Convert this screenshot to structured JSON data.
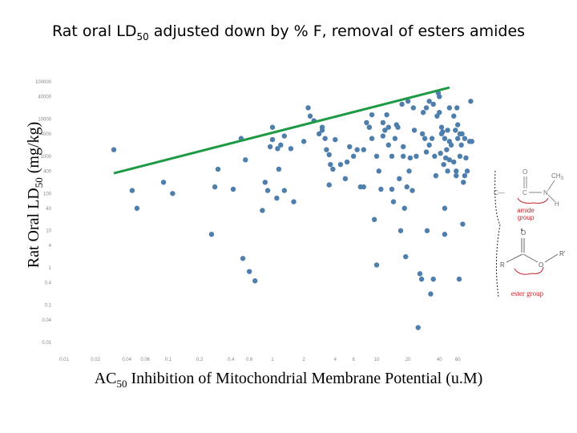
{
  "chart_data": {
    "type": "scatter",
    "title": "Rat oral LD",
    "title_sub": "50",
    "title_rest": " adjusted down by % F, removal of esters  amides",
    "ylabel": "Rat Oral LD",
    "ylabel_sub": "50",
    "ylabel_rest": " (mg/kg)",
    "xlabel": "AC",
    "xlabel_sub": "50",
    "xlabel_rest": " Inhibition of Mitochondrial Membrane Potential (u.M)",
    "x_scale": "log",
    "y_scale": "log",
    "xlim": [
      0.01,
      100
    ],
    "ylim": [
      0.01,
      100000
    ],
    "grid": false,
    "x_ticks": [
      "0.01",
      "0.02",
      "0.04",
      "0.06",
      "0.1",
      "0.2",
      "0.4",
      "0.6",
      "1",
      "2",
      "4",
      "6",
      "10",
      "20",
      "40",
      "60"
    ],
    "y_ticks": [
      "100000",
      "40000",
      "10000",
      "4000",
      "1000",
      "400",
      "100",
      "40",
      "10",
      "4",
      "1",
      "0.4",
      "0.1",
      "0.04",
      "0.01"
    ],
    "point_color": "#4e7eab",
    "line_color": "#1e9a45",
    "trend_line": {
      "x": [
        0.03,
        50
      ],
      "y": [
        350,
        70000
      ]
    },
    "points": [
      {
        "x": 0.03,
        "y": 1500
      },
      {
        "x": 0.045,
        "y": 120
      },
      {
        "x": 0.05,
        "y": 40
      },
      {
        "x": 0.09,
        "y": 200
      },
      {
        "x": 0.11,
        "y": 100
      },
      {
        "x": 0.26,
        "y": 8
      },
      {
        "x": 0.28,
        "y": 150
      },
      {
        "x": 0.3,
        "y": 450
      },
      {
        "x": 0.42,
        "y": 130
      },
      {
        "x": 0.5,
        "y": 3000
      },
      {
        "x": 0.52,
        "y": 1.8
      },
      {
        "x": 0.55,
        "y": 800
      },
      {
        "x": 0.6,
        "y": 0.8
      },
      {
        "x": 0.68,
        "y": 0.45
      },
      {
        "x": 0.8,
        "y": 35
      },
      {
        "x": 0.85,
        "y": 200
      },
      {
        "x": 0.9,
        "y": 120
      },
      {
        "x": 0.95,
        "y": 1800
      },
      {
        "x": 1,
        "y": 6000
      },
      {
        "x": 1,
        "y": 2800
      },
      {
        "x": 1.1,
        "y": 75
      },
      {
        "x": 1.12,
        "y": 1600
      },
      {
        "x": 1.15,
        "y": 450
      },
      {
        "x": 1.2,
        "y": 2000
      },
      {
        "x": 1.3,
        "y": 3500
      },
      {
        "x": 1.3,
        "y": 120
      },
      {
        "x": 1.5,
        "y": 1600
      },
      {
        "x": 1.6,
        "y": 60
      },
      {
        "x": 2,
        "y": 2500
      },
      {
        "x": 2.2,
        "y": 20000
      },
      {
        "x": 2.3,
        "y": 12000
      },
      {
        "x": 2.5,
        "y": 9000
      },
      {
        "x": 2.8,
        "y": 4000
      },
      {
        "x": 3,
        "y": 6000
      },
      {
        "x": 3,
        "y": 5000
      },
      {
        "x": 3.2,
        "y": 3000
      },
      {
        "x": 3.3,
        "y": 1500
      },
      {
        "x": 3.5,
        "y": 1100
      },
      {
        "x": 3.6,
        "y": 600
      },
      {
        "x": 3.8,
        "y": 450
      },
      {
        "x": 3.5,
        "y": 170
      },
      {
        "x": 4,
        "y": 2800
      },
      {
        "x": 4.5,
        "y": 600
      },
      {
        "x": 5,
        "y": 250
      },
      {
        "x": 5.2,
        "y": 700
      },
      {
        "x": 5.5,
        "y": 1800
      },
      {
        "x": 6,
        "y": 1000
      },
      {
        "x": 6.5,
        "y": 1500
      },
      {
        "x": 7,
        "y": 150
      },
      {
        "x": 7.5,
        "y": 150
      },
      {
        "x": 7.5,
        "y": 1500
      },
      {
        "x": 8,
        "y": 8000
      },
      {
        "x": 8.5,
        "y": 6000
      },
      {
        "x": 8.5,
        "y": 6000
      },
      {
        "x": 9,
        "y": 13000
      },
      {
        "x": 9,
        "y": 3000
      },
      {
        "x": 9.5,
        "y": 20
      },
      {
        "x": 10,
        "y": 1000
      },
      {
        "x": 10.5,
        "y": 400
      },
      {
        "x": 10,
        "y": 1.2
      },
      {
        "x": 11,
        "y": 130
      },
      {
        "x": 11.5,
        "y": 8000
      },
      {
        "x": 11.5,
        "y": 3500
      },
      {
        "x": 12,
        "y": 5000
      },
      {
        "x": 12.5,
        "y": 13000
      },
      {
        "x": 13,
        "y": 6000
      },
      {
        "x": 13,
        "y": 2000
      },
      {
        "x": 14,
        "y": 1000
      },
      {
        "x": 14,
        "y": 130
      },
      {
        "x": 14.5,
        "y": 60
      },
      {
        "x": 15,
        "y": 3000
      },
      {
        "x": 15.5,
        "y": 7000
      },
      {
        "x": 16,
        "y": 6000
      },
      {
        "x": 16.5,
        "y": 250
      },
      {
        "x": 17,
        "y": 10
      },
      {
        "x": 17.5,
        "y": 25000
      },
      {
        "x": 18,
        "y": 1800
      },
      {
        "x": 18,
        "y": 1000
      },
      {
        "x": 18.5,
        "y": 40
      },
      {
        "x": 19,
        "y": 2
      },
      {
        "x": 19.5,
        "y": 150
      },
      {
        "x": 20,
        "y": 30000
      },
      {
        "x": 20.5,
        "y": 400
      },
      {
        "x": 21,
        "y": 900
      },
      {
        "x": 22,
        "y": 120
      },
      {
        "x": 22.5,
        "y": 20000
      },
      {
        "x": 23,
        "y": 5000
      },
      {
        "x": 24,
        "y": 1000
      },
      {
        "x": 25,
        "y": 0.025
      },
      {
        "x": 26,
        "y": 0.7
      },
      {
        "x": 27,
        "y": 0.5
      },
      {
        "x": 27.5,
        "y": 4000
      },
      {
        "x": 28,
        "y": 15000
      },
      {
        "x": 29,
        "y": 3000
      },
      {
        "x": 30,
        "y": 20000
      },
      {
        "x": 30,
        "y": 1300
      },
      {
        "x": 30.5,
        "y": 10
      },
      {
        "x": 32,
        "y": 2000
      },
      {
        "x": 32,
        "y": 30000
      },
      {
        "x": 33,
        "y": 0.2
      },
      {
        "x": 34,
        "y": 3000
      },
      {
        "x": 35,
        "y": 25000
      },
      {
        "x": 35,
        "y": 0.5
      },
      {
        "x": 36,
        "y": 1000
      },
      {
        "x": 37,
        "y": 300
      },
      {
        "x": 38,
        "y": 12000
      },
      {
        "x": 39,
        "y": 50000
      },
      {
        "x": 40,
        "y": 40000
      },
      {
        "x": 40,
        "y": 15000
      },
      {
        "x": 41,
        "y": 1200
      },
      {
        "x": 42,
        "y": 4000
      },
      {
        "x": 42,
        "y": 6000
      },
      {
        "x": 43,
        "y": 4500
      },
      {
        "x": 44,
        "y": 600
      },
      {
        "x": 45,
        "y": 40
      },
      {
        "x": 45,
        "y": 8
      },
      {
        "x": 45,
        "y": 3000
      },
      {
        "x": 46,
        "y": 900
      },
      {
        "x": 47,
        "y": 1500
      },
      {
        "x": 48,
        "y": 5000
      },
      {
        "x": 48,
        "y": 400
      },
      {
        "x": 50,
        "y": 800
      },
      {
        "x": 50,
        "y": 20000
      },
      {
        "x": 50,
        "y": 2500
      },
      {
        "x": 52,
        "y": 2000
      },
      {
        "x": 55,
        "y": 700
      },
      {
        "x": 55,
        "y": 12000
      },
      {
        "x": 57,
        "y": 5000
      },
      {
        "x": 58,
        "y": 400
      },
      {
        "x": 58,
        "y": 300
      },
      {
        "x": 59,
        "y": 20000
      },
      {
        "x": 60,
        "y": 7000
      },
      {
        "x": 60,
        "y": 3000
      },
      {
        "x": 62,
        "y": 0.5
      },
      {
        "x": 63,
        "y": 4000
      },
      {
        "x": 63,
        "y": 1000
      },
      {
        "x": 65,
        "y": 2000
      },
      {
        "x": 66,
        "y": 4000
      },
      {
        "x": 67,
        "y": 15
      },
      {
        "x": 68,
        "y": 200
      },
      {
        "x": 70,
        "y": 3000
      },
      {
        "x": 70,
        "y": 300
      },
      {
        "x": 72,
        "y": 900
      },
      {
        "x": 74,
        "y": 400
      },
      {
        "x": 78,
        "y": 2500
      },
      {
        "x": 80,
        "y": 30000
      },
      {
        "x": 82,
        "y": 2500
      }
    ]
  },
  "annotations": {
    "amide_group_label_1": "amide",
    "amide_group_label_2": "group",
    "ester_group_label": "ester group",
    "amide_atom_O": "O",
    "amide_atom_CH3": "CH",
    "amide_atom_CH3_sub": "3",
    "amide_atom_C_left": "C—",
    "amide_atom_C": "C",
    "amide_atom_N": "N",
    "amide_atom_H": "H",
    "ester_atom_O_top": "O",
    "ester_atom_R": "R",
    "ester_atom_O": "O",
    "ester_atom_R2": "R'"
  }
}
